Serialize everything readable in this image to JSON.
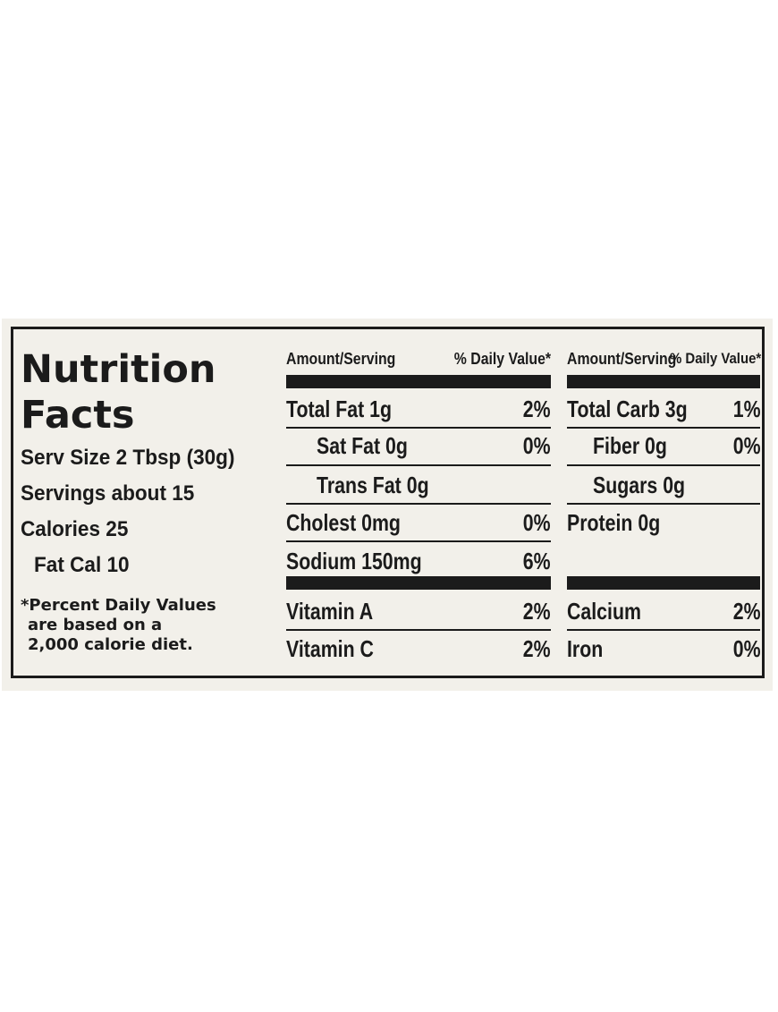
{
  "title": {
    "line1": "Nutrition",
    "line2": "Facts"
  },
  "left": {
    "serv_size": "Serv Size 2 Tbsp (30g)",
    "servings": "Servings about 15",
    "calories": "Calories 25",
    "fat_cal": "Fat Cal 10",
    "footnote": [
      "*Percent Daily Values",
      "are based on a",
      "2,000 calorie diet."
    ]
  },
  "headers": {
    "amount": "Amount/Serving",
    "dv": "% Daily Value*",
    "amount2": "Amount/Serving",
    "dv2": "% Daily Value*"
  },
  "middle": [
    {
      "name": "Total Fat 1g",
      "dv": "2%"
    },
    {
      "name": "Sat Fat 0g",
      "dv": "0%"
    },
    {
      "name": "Trans Fat 0g",
      "dv": ""
    },
    {
      "name": "Cholest 0mg",
      "dv": "0%"
    },
    {
      "name": "Sodium 150mg",
      "dv": "6%"
    },
    {
      "name": "Vitamin A",
      "dv": "2%"
    },
    {
      "name": "Vitamin C",
      "dv": "2%"
    }
  ],
  "right": [
    {
      "name": "Total Carb 3g",
      "dv": "1%"
    },
    {
      "name": "Fiber 0g",
      "dv": "0%"
    },
    {
      "name": "Sugars 0g",
      "dv": ""
    },
    {
      "name": "Protein 0g",
      "dv": ""
    },
    {
      "name": "Calcium",
      "dv": "2%"
    },
    {
      "name": "Iron",
      "dv": "0%"
    }
  ],
  "colors": {
    "ink": "#1b1b1b",
    "paper": "#f2f0ea"
  }
}
